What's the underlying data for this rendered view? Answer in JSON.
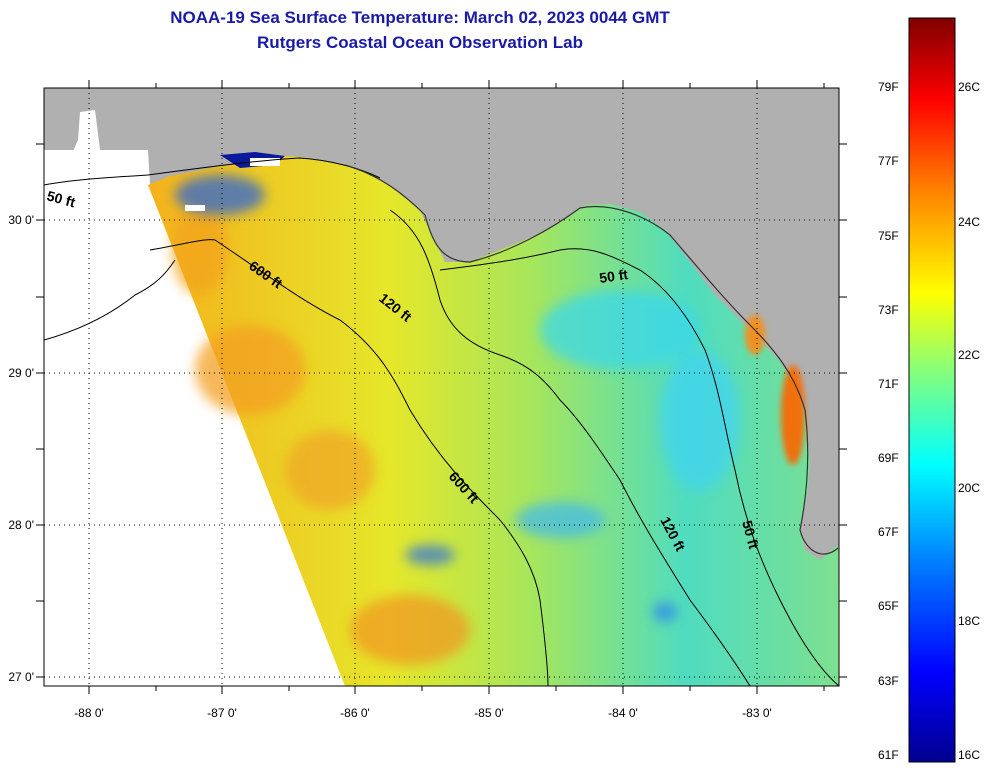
{
  "title": {
    "line1": "NOAA-19 Sea Surface Temperature:  March 02, 2023 0044 GMT",
    "line2": "Rutgers Coastal Ocean Observation Lab"
  },
  "map": {
    "latitude_labels": [
      "30 0'",
      "29 0'",
      "28 0'",
      "27 0'"
    ],
    "longitude_labels": [
      "-88 0'",
      "-87 0'",
      "-86 0'",
      "-85 0'",
      "-84 0'",
      "-83 0'"
    ],
    "contour_labels": [
      "50 ft",
      "600 ft",
      "120 ft",
      "50 ft",
      "600 ft",
      "120 ft",
      "50 ft"
    ],
    "land_color": "#b0b0b0",
    "no_data_color": "#ffffff"
  },
  "colorbar": {
    "fahrenheit_labels": [
      "79F",
      "77F",
      "75F",
      "73F",
      "71F",
      "69F",
      "67F",
      "65F",
      "63F",
      "61F"
    ],
    "celsius_labels": [
      "26C",
      "24C",
      "22C",
      "20C",
      "18C",
      "16C"
    ],
    "range_f": [
      61,
      80.6
    ],
    "range_c": [
      16,
      27
    ]
  }
}
